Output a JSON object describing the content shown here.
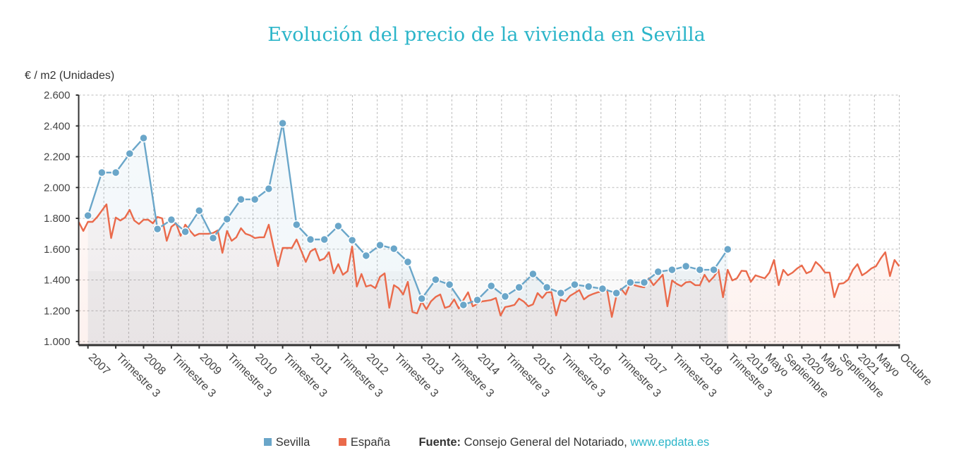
{
  "title": "Evolución del precio de la vivienda en Sevilla",
  "legend": {
    "sevilla": "Sevilla",
    "espana": "España"
  },
  "source": {
    "label": "Fuente:",
    "text": "Consejo General del Notariado,",
    "link": "www.epdata.es"
  },
  "colors": {
    "sevilla": "#6aa6c9",
    "espana": "#ea6a4b",
    "title": "#2bb5c9"
  },
  "chart_data": {
    "type": "line",
    "title": "Evolución del precio de la vivienda en Sevilla",
    "ylabel": "€ / m2 (Unidades)",
    "ylim": [
      1000,
      2600
    ],
    "yticks": [
      "1.000",
      "1.200",
      "1.400",
      "1.600",
      "1.800",
      "2.000",
      "2.200",
      "2.400",
      "2.600"
    ],
    "ytick_values": [
      1000,
      1200,
      1400,
      1600,
      1800,
      2000,
      2200,
      2400,
      2600
    ],
    "grid": true,
    "legend_position": "bottom",
    "xticks": [
      {
        "label": "2007",
        "date": "2007-03"
      },
      {
        "label": "Trimestre 3",
        "date": "2007-09"
      },
      {
        "label": "2008",
        "date": "2008-03"
      },
      {
        "label": "Trimestre 3",
        "date": "2008-09"
      },
      {
        "label": "2009",
        "date": "2009-03"
      },
      {
        "label": "Trimestre 3",
        "date": "2009-09"
      },
      {
        "label": "2010",
        "date": "2010-03"
      },
      {
        "label": "Trimestre 3",
        "date": "2010-09"
      },
      {
        "label": "2011",
        "date": "2011-03"
      },
      {
        "label": "Trimestre 3",
        "date": "2011-09"
      },
      {
        "label": "2012",
        "date": "2012-03"
      },
      {
        "label": "Trimestre 3",
        "date": "2012-09"
      },
      {
        "label": "2013",
        "date": "2013-03"
      },
      {
        "label": "Trimestre 3",
        "date": "2013-09"
      },
      {
        "label": "2014",
        "date": "2014-03"
      },
      {
        "label": "Trimestre 3",
        "date": "2014-09"
      },
      {
        "label": "2015",
        "date": "2015-03"
      },
      {
        "label": "Trimestre 3",
        "date": "2015-09"
      },
      {
        "label": "2016",
        "date": "2016-03"
      },
      {
        "label": "Trimestre 3",
        "date": "2016-09"
      },
      {
        "label": "2017",
        "date": "2017-03"
      },
      {
        "label": "Trimestre 3",
        "date": "2017-09"
      },
      {
        "label": "2018",
        "date": "2018-03"
      },
      {
        "label": "Trimestre 3",
        "date": "2018-09"
      },
      {
        "label": "2019",
        "date": "2019-01"
      },
      {
        "label": "Mayo",
        "date": "2019-05"
      },
      {
        "label": "Septiembre",
        "date": "2019-09"
      },
      {
        "label": "2020",
        "date": "2020-01"
      },
      {
        "label": "Mayo",
        "date": "2020-05"
      },
      {
        "label": "Septiembre",
        "date": "2020-09"
      },
      {
        "label": "2021",
        "date": "2021-01"
      },
      {
        "label": "Mayo",
        "date": "2021-05"
      },
      {
        "label": "Octubre",
        "date": "2021-10"
      }
    ],
    "series": [
      {
        "name": "Sevilla",
        "frequency": "quarterly",
        "start": "2007 T1",
        "end": "2018 T3",
        "values": [
          1818,
          2097,
          2097,
          2220,
          2321,
          1731,
          1791,
          1713,
          1850,
          1672,
          1795,
          1923,
          1923,
          1992,
          2417,
          1759,
          1663,
          1663,
          1750,
          1658,
          1558,
          1626,
          1603,
          1517,
          1279,
          1402,
          1370,
          1238,
          1270,
          1361,
          1293,
          1352,
          1439,
          1352,
          1315,
          1370,
          1357,
          1343,
          1315,
          1384,
          1384,
          1453,
          1466,
          1489,
          1466,
          1466,
          1599
        ]
      },
      {
        "name": "España",
        "frequency": "monthly",
        "start": "2007-01",
        "end": "2021-10",
        "values": [
          1777,
          1718,
          1777,
          1777,
          1809,
          1850,
          1891,
          1672,
          1805,
          1786,
          1805,
          1855,
          1786,
          1763,
          1791,
          1791,
          1768,
          1809,
          1800,
          1654,
          1745,
          1768,
          1686,
          1759,
          1720,
          1686,
          1700,
          1700,
          1700,
          1705,
          1722,
          1576,
          1718,
          1654,
          1677,
          1736,
          1700,
          1690,
          1672,
          1677,
          1677,
          1759,
          1620,
          1489,
          1608,
          1608,
          1608,
          1663,
          1590,
          1517,
          1585,
          1603,
          1526,
          1539,
          1580,
          1443,
          1503,
          1434,
          1457,
          1617,
          1357,
          1439,
          1357,
          1366,
          1347,
          1420,
          1443,
          1219,
          1366,
          1347,
          1306,
          1388,
          1192,
          1183,
          1260,
          1210,
          1261,
          1290,
          1306,
          1219,
          1229,
          1274,
          1215,
          1270,
          1320,
          1229,
          1245,
          1261,
          1265,
          1270,
          1283,
          1169,
          1224,
          1230,
          1238,
          1279,
          1260,
          1229,
          1242,
          1315,
          1283,
          1320,
          1320,
          1169,
          1274,
          1261,
          1297,
          1315,
          1334,
          1274,
          1297,
          1310,
          1320,
          1325,
          1334,
          1160,
          1297,
          1343,
          1306,
          1379,
          1365,
          1357,
          1352,
          1411,
          1366,
          1400,
          1434,
          1229,
          1397,
          1375,
          1360,
          1385,
          1388,
          1366,
          1366,
          1434,
          1388,
          1420,
          1466,
          1288,
          1466,
          1397,
          1411,
          1460,
          1457,
          1388,
          1430,
          1420,
          1411,
          1448,
          1530,
          1366,
          1466,
          1430,
          1448,
          1475,
          1494,
          1443,
          1457,
          1517,
          1489,
          1448,
          1448,
          1288,
          1375,
          1379,
          1402,
          1466,
          1503,
          1430,
          1450,
          1475,
          1489,
          1539,
          1580,
          1425,
          1530,
          1489
        ]
      }
    ]
  }
}
